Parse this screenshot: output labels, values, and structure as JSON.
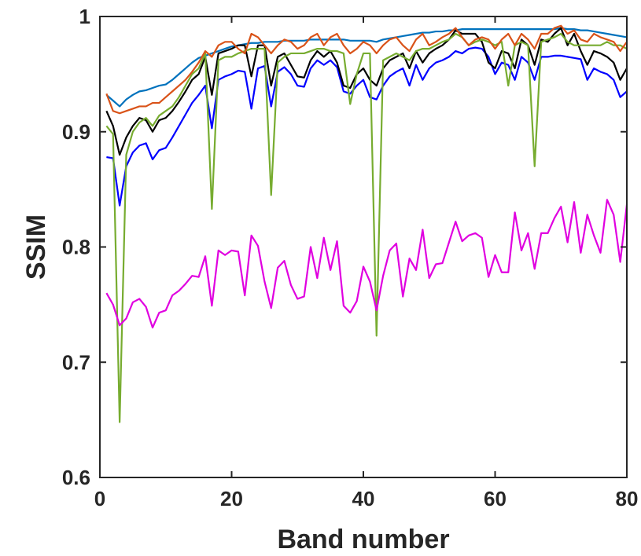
{
  "chart_data": {
    "type": "line",
    "title": "",
    "xlabel": "Band number",
    "ylabel": "SSIM",
    "xlim": [
      0,
      80
    ],
    "ylim": [
      0.6,
      1
    ],
    "xticks": [
      0,
      20,
      40,
      60,
      80
    ],
    "xtick_labels": [
      "0",
      "20",
      "40",
      "60",
      "80"
    ],
    "yticks": [
      0.6,
      0.7,
      0.8,
      0.9,
      1
    ],
    "ytick_labels": [
      "0.6",
      "0.7",
      "0.8",
      "0.9",
      "1"
    ],
    "grid": false,
    "legend": "none",
    "x": [
      1,
      2,
      3,
      4,
      5,
      6,
      7,
      8,
      9,
      10,
      11,
      12,
      13,
      14,
      15,
      16,
      17,
      18,
      19,
      20,
      21,
      22,
      23,
      24,
      25,
      26,
      27,
      28,
      29,
      30,
      31,
      32,
      33,
      34,
      35,
      36,
      37,
      38,
      39,
      40,
      41,
      42,
      43,
      44,
      45,
      46,
      47,
      48,
      49,
      50,
      51,
      52,
      53,
      54,
      55,
      56,
      57,
      58,
      59,
      60,
      61,
      62,
      63,
      64,
      65,
      66,
      67,
      68,
      69,
      70,
      71,
      72,
      73,
      74,
      75,
      76,
      77,
      78,
      79,
      80
    ],
    "series": [
      {
        "color": "#0072BD",
        "values": [
          0.932,
          0.927,
          0.922,
          0.928,
          0.932,
          0.935,
          0.936,
          0.938,
          0.94,
          0.941,
          0.945,
          0.95,
          0.955,
          0.96,
          0.964,
          0.966,
          0.968,
          0.97,
          0.972,
          0.974,
          0.975,
          0.976,
          0.977,
          0.977,
          0.978,
          0.978,
          0.978,
          0.979,
          0.979,
          0.979,
          0.979,
          0.98,
          0.98,
          0.98,
          0.98,
          0.98,
          0.98,
          0.979,
          0.979,
          0.979,
          0.979,
          0.978,
          0.98,
          0.981,
          0.982,
          0.983,
          0.984,
          0.985,
          0.986,
          0.986,
          0.987,
          0.987,
          0.988,
          0.988,
          0.989,
          0.989,
          0.989,
          0.989,
          0.989,
          0.989,
          0.989,
          0.989,
          0.989,
          0.989,
          0.989,
          0.989,
          0.989,
          0.989,
          0.989,
          0.99,
          0.989,
          0.989,
          0.988,
          0.988,
          0.987,
          0.986,
          0.985,
          0.984,
          0.983,
          0.982
        ]
      },
      {
        "color": "#0000FF",
        "values": [
          0.878,
          0.877,
          0.836,
          0.87,
          0.882,
          0.888,
          0.89,
          0.876,
          0.884,
          0.886,
          0.895,
          0.905,
          0.915,
          0.925,
          0.932,
          0.94,
          0.903,
          0.945,
          0.948,
          0.95,
          0.953,
          0.952,
          0.92,
          0.955,
          0.957,
          0.922,
          0.952,
          0.956,
          0.95,
          0.94,
          0.939,
          0.955,
          0.962,
          0.958,
          0.962,
          0.956,
          0.935,
          0.933,
          0.94,
          0.945,
          0.93,
          0.928,
          0.94,
          0.948,
          0.952,
          0.955,
          0.94,
          0.958,
          0.945,
          0.955,
          0.96,
          0.962,
          0.965,
          0.97,
          0.968,
          0.972,
          0.973,
          0.972,
          0.965,
          0.95,
          0.96,
          0.958,
          0.945,
          0.965,
          0.96,
          0.945,
          0.965,
          0.965,
          0.966,
          0.966,
          0.965,
          0.964,
          0.963,
          0.945,
          0.955,
          0.952,
          0.95,
          0.945,
          0.93,
          0.935
        ]
      },
      {
        "color": "#000000",
        "values": [
          0.918,
          0.905,
          0.88,
          0.895,
          0.905,
          0.912,
          0.91,
          0.9,
          0.91,
          0.912,
          0.918,
          0.926,
          0.935,
          0.945,
          0.95,
          0.965,
          0.932,
          0.968,
          0.97,
          0.972,
          0.975,
          0.975,
          0.948,
          0.975,
          0.975,
          0.94,
          0.965,
          0.968,
          0.958,
          0.948,
          0.947,
          0.962,
          0.97,
          0.965,
          0.97,
          0.96,
          0.94,
          0.938,
          0.95,
          0.955,
          0.945,
          0.94,
          0.955,
          0.962,
          0.965,
          0.968,
          0.955,
          0.97,
          0.96,
          0.968,
          0.972,
          0.975,
          0.98,
          0.988,
          0.985,
          0.985,
          0.985,
          0.978,
          0.96,
          0.955,
          0.97,
          0.968,
          0.955,
          0.98,
          0.975,
          0.958,
          0.98,
          0.978,
          0.985,
          0.99,
          0.975,
          0.985,
          0.97,
          0.958,
          0.97,
          0.968,
          0.965,
          0.96,
          0.945,
          0.955
        ]
      },
      {
        "color": "#77AC30",
        "values": [
          0.905,
          0.898,
          0.648,
          0.88,
          0.9,
          0.908,
          0.912,
          0.905,
          0.914,
          0.918,
          0.922,
          0.93,
          0.94,
          0.95,
          0.955,
          0.968,
          0.833,
          0.962,
          0.965,
          0.965,
          0.968,
          0.97,
          0.972,
          0.972,
          0.972,
          0.845,
          0.96,
          0.965,
          0.968,
          0.968,
          0.968,
          0.97,
          0.972,
          0.972,
          0.97,
          0.97,
          0.968,
          0.924,
          0.95,
          0.968,
          0.968,
          0.723,
          0.962,
          0.965,
          0.968,
          0.965,
          0.962,
          0.97,
          0.972,
          0.972,
          0.975,
          0.978,
          0.98,
          0.985,
          0.982,
          0.975,
          0.978,
          0.98,
          0.978,
          0.975,
          0.978,
          0.94,
          0.975,
          0.978,
          0.975,
          0.87,
          0.978,
          0.98,
          0.982,
          0.985,
          0.978,
          0.975,
          0.975,
          0.975,
          0.975,
          0.975,
          0.978,
          0.975,
          0.975,
          0.972
        ]
      },
      {
        "color": "#D95319",
        "values": [
          0.933,
          0.918,
          0.916,
          0.918,
          0.92,
          0.922,
          0.922,
          0.925,
          0.925,
          0.93,
          0.935,
          0.94,
          0.945,
          0.952,
          0.96,
          0.97,
          0.965,
          0.975,
          0.978,
          0.978,
          0.972,
          0.968,
          0.985,
          0.982,
          0.975,
          0.968,
          0.975,
          0.98,
          0.978,
          0.972,
          0.975,
          0.982,
          0.985,
          0.975,
          0.982,
          0.985,
          0.975,
          0.968,
          0.972,
          0.978,
          0.975,
          0.968,
          0.975,
          0.98,
          0.982,
          0.975,
          0.97,
          0.98,
          0.985,
          0.975,
          0.978,
          0.982,
          0.985,
          0.99,
          0.982,
          0.975,
          0.98,
          0.982,
          0.98,
          0.972,
          0.98,
          0.985,
          0.975,
          0.985,
          0.98,
          0.972,
          0.985,
          0.985,
          0.99,
          0.992,
          0.985,
          0.988,
          0.98,
          0.978,
          0.985,
          0.982,
          0.98,
          0.978,
          0.97,
          0.978
        ]
      },
      {
        "color": "#E000E0",
        "values": [
          0.76,
          0.75,
          0.732,
          0.738,
          0.752,
          0.755,
          0.748,
          0.73,
          0.743,
          0.745,
          0.758,
          0.762,
          0.768,
          0.775,
          0.774,
          0.792,
          0.749,
          0.797,
          0.793,
          0.797,
          0.796,
          0.758,
          0.81,
          0.801,
          0.77,
          0.747,
          0.782,
          0.788,
          0.767,
          0.755,
          0.757,
          0.8,
          0.773,
          0.808,
          0.78,
          0.805,
          0.749,
          0.743,
          0.753,
          0.783,
          0.77,
          0.745,
          0.775,
          0.797,
          0.803,
          0.757,
          0.79,
          0.78,
          0.815,
          0.773,
          0.785,
          0.786,
          0.804,
          0.822,
          0.805,
          0.81,
          0.812,
          0.808,
          0.774,
          0.793,
          0.778,
          0.778,
          0.83,
          0.797,
          0.812,
          0.781,
          0.812,
          0.812,
          0.825,
          0.835,
          0.804,
          0.839,
          0.795,
          0.828,
          0.81,
          0.795,
          0.841,
          0.828,
          0.787,
          0.837
        ]
      }
    ]
  }
}
